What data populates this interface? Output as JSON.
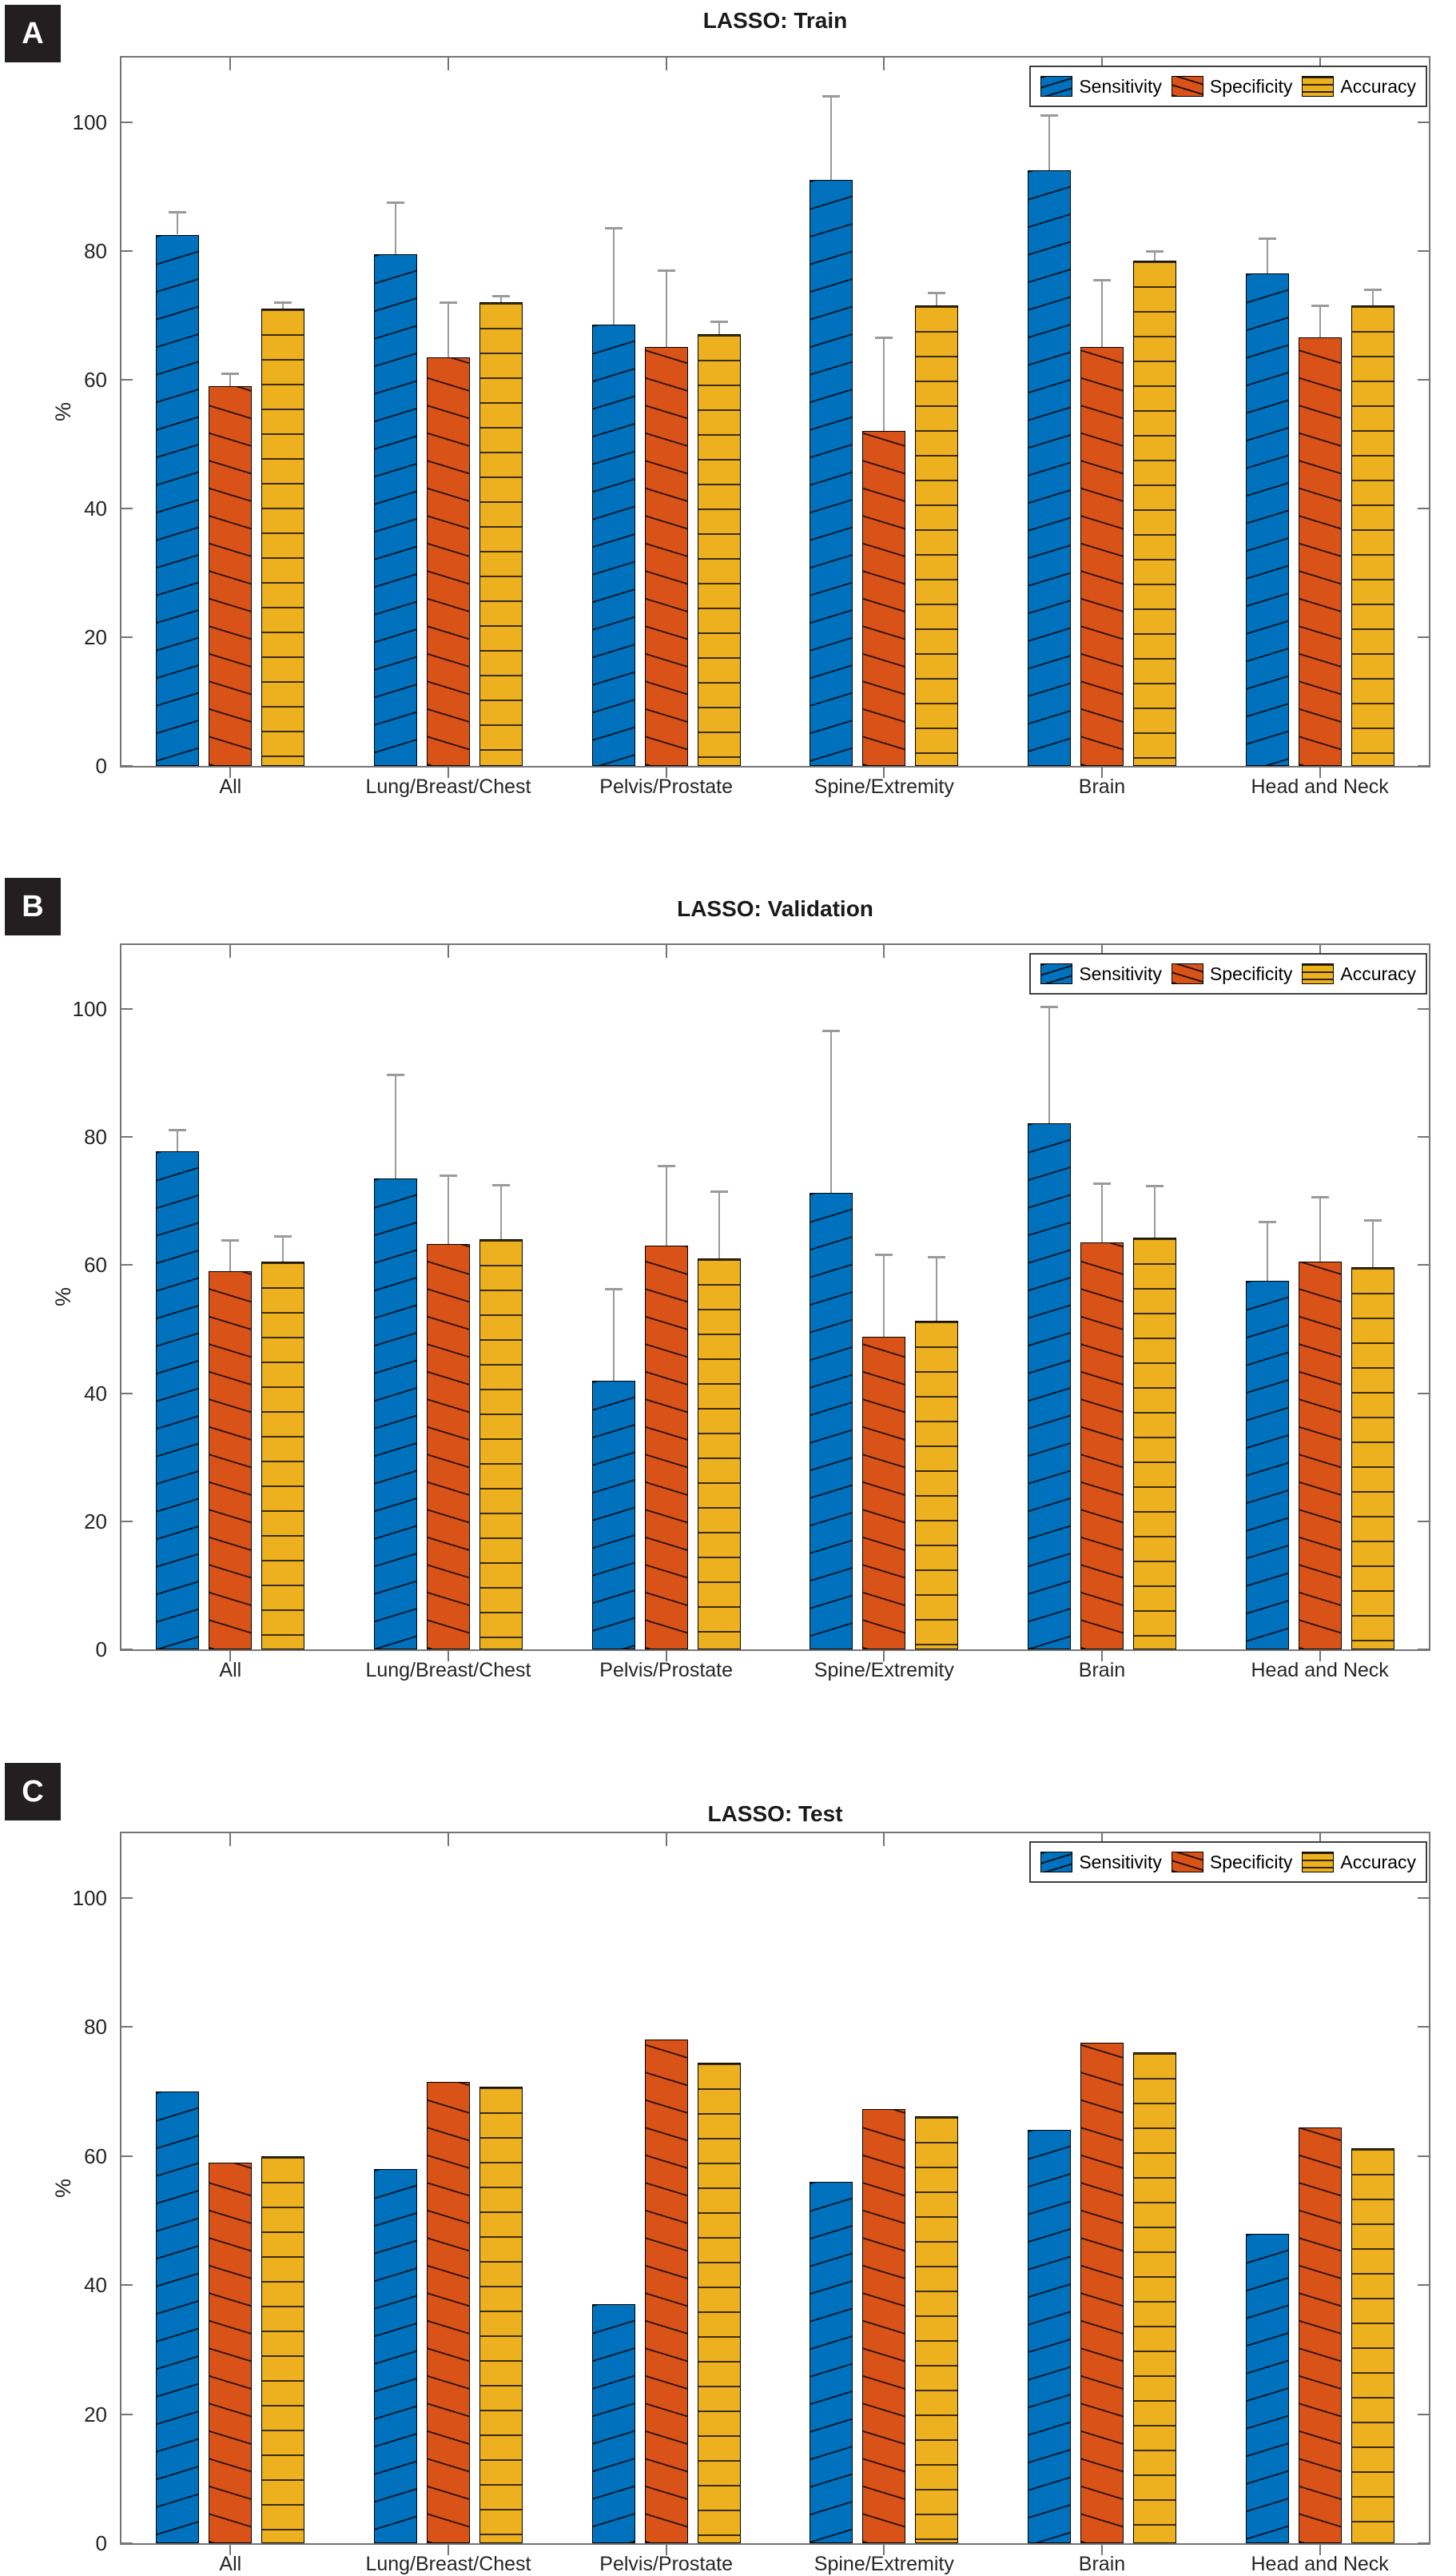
{
  "colors": {
    "sensitivity": "#0072BD",
    "specificity": "#D95319",
    "accuracy": "#EDB120",
    "error_bar": "#9a9a9a",
    "axis": "#757575",
    "badge_background": "#231f20",
    "badge_text": "#ffffff"
  },
  "chart_data": [
    {
      "type": "bar",
      "badge": "A",
      "title": "LASSO: Train",
      "ylabel": "%",
      "yticks": [
        0,
        20,
        40,
        60,
        80,
        100
      ],
      "ylim": [
        0,
        110
      ],
      "grid": false,
      "legend_position": "top-right",
      "error_bars": true,
      "categories": [
        "All",
        "Lung/Breast/Chest",
        "Pelvis/Prostate",
        "Spine/Extremity",
        "Brain",
        "Head and Neck"
      ],
      "series": [
        {
          "name": "Sensitivity",
          "color": "#0072BD",
          "hatch": "forward-diagonal",
          "values": [
            82.5,
            79.5,
            68.5,
            91,
            92.5,
            76.5
          ],
          "error_up": [
            3.5,
            8,
            15,
            13,
            8.5,
            5.5
          ]
        },
        {
          "name": "Specificity",
          "color": "#D95319",
          "hatch": "back-diagonal",
          "values": [
            59,
            63.5,
            65,
            52,
            65,
            66.5
          ],
          "error_up": [
            2,
            8.5,
            12,
            14.5,
            10.5,
            5
          ]
        },
        {
          "name": "Accuracy",
          "color": "#EDB120",
          "hatch": "horizontal",
          "values": [
            71,
            72,
            67,
            71.5,
            78.5,
            71.5
          ],
          "error_up": [
            1,
            1,
            2,
            2,
            1.5,
            2.5
          ]
        }
      ]
    },
    {
      "type": "bar",
      "badge": "B",
      "title": "LASSO: Validation",
      "ylabel": "%",
      "yticks": [
        0,
        20,
        40,
        60,
        80,
        100
      ],
      "ylim": [
        0,
        110
      ],
      "grid": false,
      "legend_position": "top-right",
      "error_bars": true,
      "categories": [
        "All",
        "Lung/Breast/Chest",
        "Pelvis/Prostate",
        "Spine/Extremity",
        "Brain",
        "Head and Neck"
      ],
      "series": [
        {
          "name": "Sensitivity",
          "color": "#0072BD",
          "hatch": "forward-diagonal",
          "values": [
            77.8,
            73.5,
            42,
            71.3,
            82.2,
            57.5
          ],
          "error_up": [
            3.4,
            16.3,
            14.3,
            25.4,
            18.2,
            9.3
          ]
        },
        {
          "name": "Specificity",
          "color": "#D95319",
          "hatch": "back-diagonal",
          "values": [
            59,
            63.3,
            63,
            48.8,
            63.6,
            60.5
          ],
          "error_up": [
            4.9,
            10.7,
            12.5,
            12.9,
            9.2,
            10.2
          ]
        },
        {
          "name": "Accuracy",
          "color": "#EDB120",
          "hatch": "horizontal",
          "values": [
            60.5,
            64,
            61,
            51.3,
            64.3,
            59.7
          ],
          "error_up": [
            4,
            8.6,
            10.5,
            10,
            8.1,
            7.4
          ]
        }
      ]
    },
    {
      "type": "bar",
      "badge": "C",
      "title": "LASSO: Test",
      "ylabel": "%",
      "yticks": [
        0,
        20,
        40,
        60,
        80,
        100
      ],
      "ylim": [
        0,
        110
      ],
      "grid": false,
      "legend_position": "top-right",
      "error_bars": false,
      "categories": [
        "All",
        "Lung/Breast/Chest",
        "Pelvis/Prostate",
        "Spine/Extremity",
        "Brain",
        "Head and Neck"
      ],
      "series": [
        {
          "name": "Sensitivity",
          "color": "#0072BD",
          "hatch": "forward-diagonal",
          "values": [
            70,
            58,
            37,
            56,
            64,
            48
          ]
        },
        {
          "name": "Specificity",
          "color": "#D95319",
          "hatch": "back-diagonal",
          "values": [
            59,
            71.5,
            78,
            67.3,
            77.5,
            64.4
          ]
        },
        {
          "name": "Accuracy",
          "color": "#EDB120",
          "hatch": "horizontal",
          "values": [
            60,
            70.7,
            74.5,
            66.2,
            76,
            61.2
          ]
        }
      ]
    }
  ]
}
